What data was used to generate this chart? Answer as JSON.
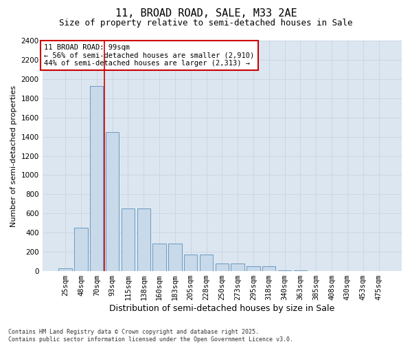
{
  "title": "11, BROAD ROAD, SALE, M33 2AE",
  "subtitle": "Size of property relative to semi-detached houses in Sale",
  "xlabel": "Distribution of semi-detached houses by size in Sale",
  "ylabel": "Number of semi-detached properties",
  "categories": [
    "25sqm",
    "48sqm",
    "70sqm",
    "93sqm",
    "115sqm",
    "138sqm",
    "160sqm",
    "183sqm",
    "205sqm",
    "228sqm",
    "250sqm",
    "273sqm",
    "295sqm",
    "318sqm",
    "340sqm",
    "363sqm",
    "385sqm",
    "408sqm",
    "430sqm",
    "453sqm",
    "475sqm"
  ],
  "values": [
    30,
    450,
    1930,
    1450,
    650,
    650,
    290,
    290,
    175,
    175,
    80,
    80,
    50,
    50,
    10,
    10,
    0,
    0,
    0,
    0,
    0
  ],
  "bar_color": "#c8d9ea",
  "bar_edge_color": "#6a9abf",
  "vline_x": 2.5,
  "vline_color": "#cc0000",
  "annotation_text": "11 BROAD ROAD: 99sqm\n← 56% of semi-detached houses are smaller (2,910)\n44% of semi-detached houses are larger (2,313) →",
  "annotation_box_color": "#ffffff",
  "annotation_edge_color": "#cc0000",
  "grid_color": "#c8d4e3",
  "background_color": "#dce6f0",
  "ylim": [
    0,
    2400
  ],
  "yticks": [
    0,
    200,
    400,
    600,
    800,
    1000,
    1200,
    1400,
    1600,
    1800,
    2000,
    2200,
    2400
  ],
  "footer": "Contains HM Land Registry data © Crown copyright and database right 2025.\nContains public sector information licensed under the Open Government Licence v3.0.",
  "title_fontsize": 11,
  "subtitle_fontsize": 9,
  "ylabel_fontsize": 8,
  "xlabel_fontsize": 9,
  "tick_fontsize": 7.5,
  "annot_fontsize": 7.5,
  "footer_fontsize": 6
}
